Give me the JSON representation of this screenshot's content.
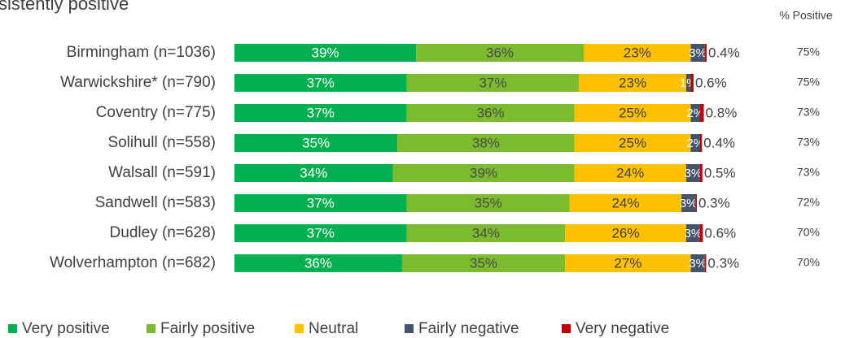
{
  "chart_data": {
    "type": "stacked-bar-horizontal",
    "title": "sistently positive",
    "categories": [
      "Birmingham (n=1036)",
      "Warwickshire* (n=790)",
      "Coventry (n=775)",
      "Solihull (n=558)",
      "Walsall (n=591)",
      "Sandwell (n=583)",
      "Dudley (n=628)",
      "Wolverhampton (n=682)"
    ],
    "series": [
      {
        "name": "Very positive",
        "color": "#00b050",
        "values": [
          39,
          37,
          37,
          35,
          34,
          37,
          37,
          36
        ],
        "value_labels": [
          "39%",
          "37%",
          "37%",
          "35%",
          "34%",
          "37%",
          "37%",
          "36%"
        ]
      },
      {
        "name": "Fairly positive",
        "color": "#7cbb2e",
        "values": [
          36,
          37,
          36,
          38,
          39,
          35,
          34,
          35
        ],
        "value_labels": [
          "36%",
          "37%",
          "36%",
          "38%",
          "39%",
          "35%",
          "34%",
          "35%"
        ]
      },
      {
        "name": "Neutral",
        "color": "#ffc000",
        "values": [
          23,
          23,
          25,
          25,
          24,
          24,
          26,
          27
        ],
        "value_labels": [
          "23%",
          "23%",
          "25%",
          "25%",
          "24%",
          "24%",
          "26%",
          "27%"
        ]
      },
      {
        "name": "Fairly negative",
        "color": "#44546a",
        "values": [
          3,
          1,
          2,
          2,
          3,
          3,
          3,
          3
        ],
        "value_labels": [
          "3%",
          "1%",
          "2%",
          "2%",
          "3%",
          "3%",
          "3%",
          "3%"
        ]
      },
      {
        "name": "Very negative",
        "color": "#c00000",
        "values": [
          0.4,
          0.6,
          0.8,
          0.4,
          0.5,
          0.3,
          0.6,
          0.3
        ],
        "value_labels": [
          "0.4%",
          "0.6%",
          "0.8%",
          "0.4%",
          "0.5%",
          "0.3%",
          "0.6%",
          "0.3%"
        ]
      }
    ],
    "positive": {
      "title": "% Positive",
      "values": [
        75,
        75,
        73,
        73,
        73,
        72,
        70,
        70
      ],
      "value_labels": [
        "75%",
        "75%",
        "73%",
        "73%",
        "73%",
        "72%",
        "70%",
        "70%"
      ]
    }
  }
}
